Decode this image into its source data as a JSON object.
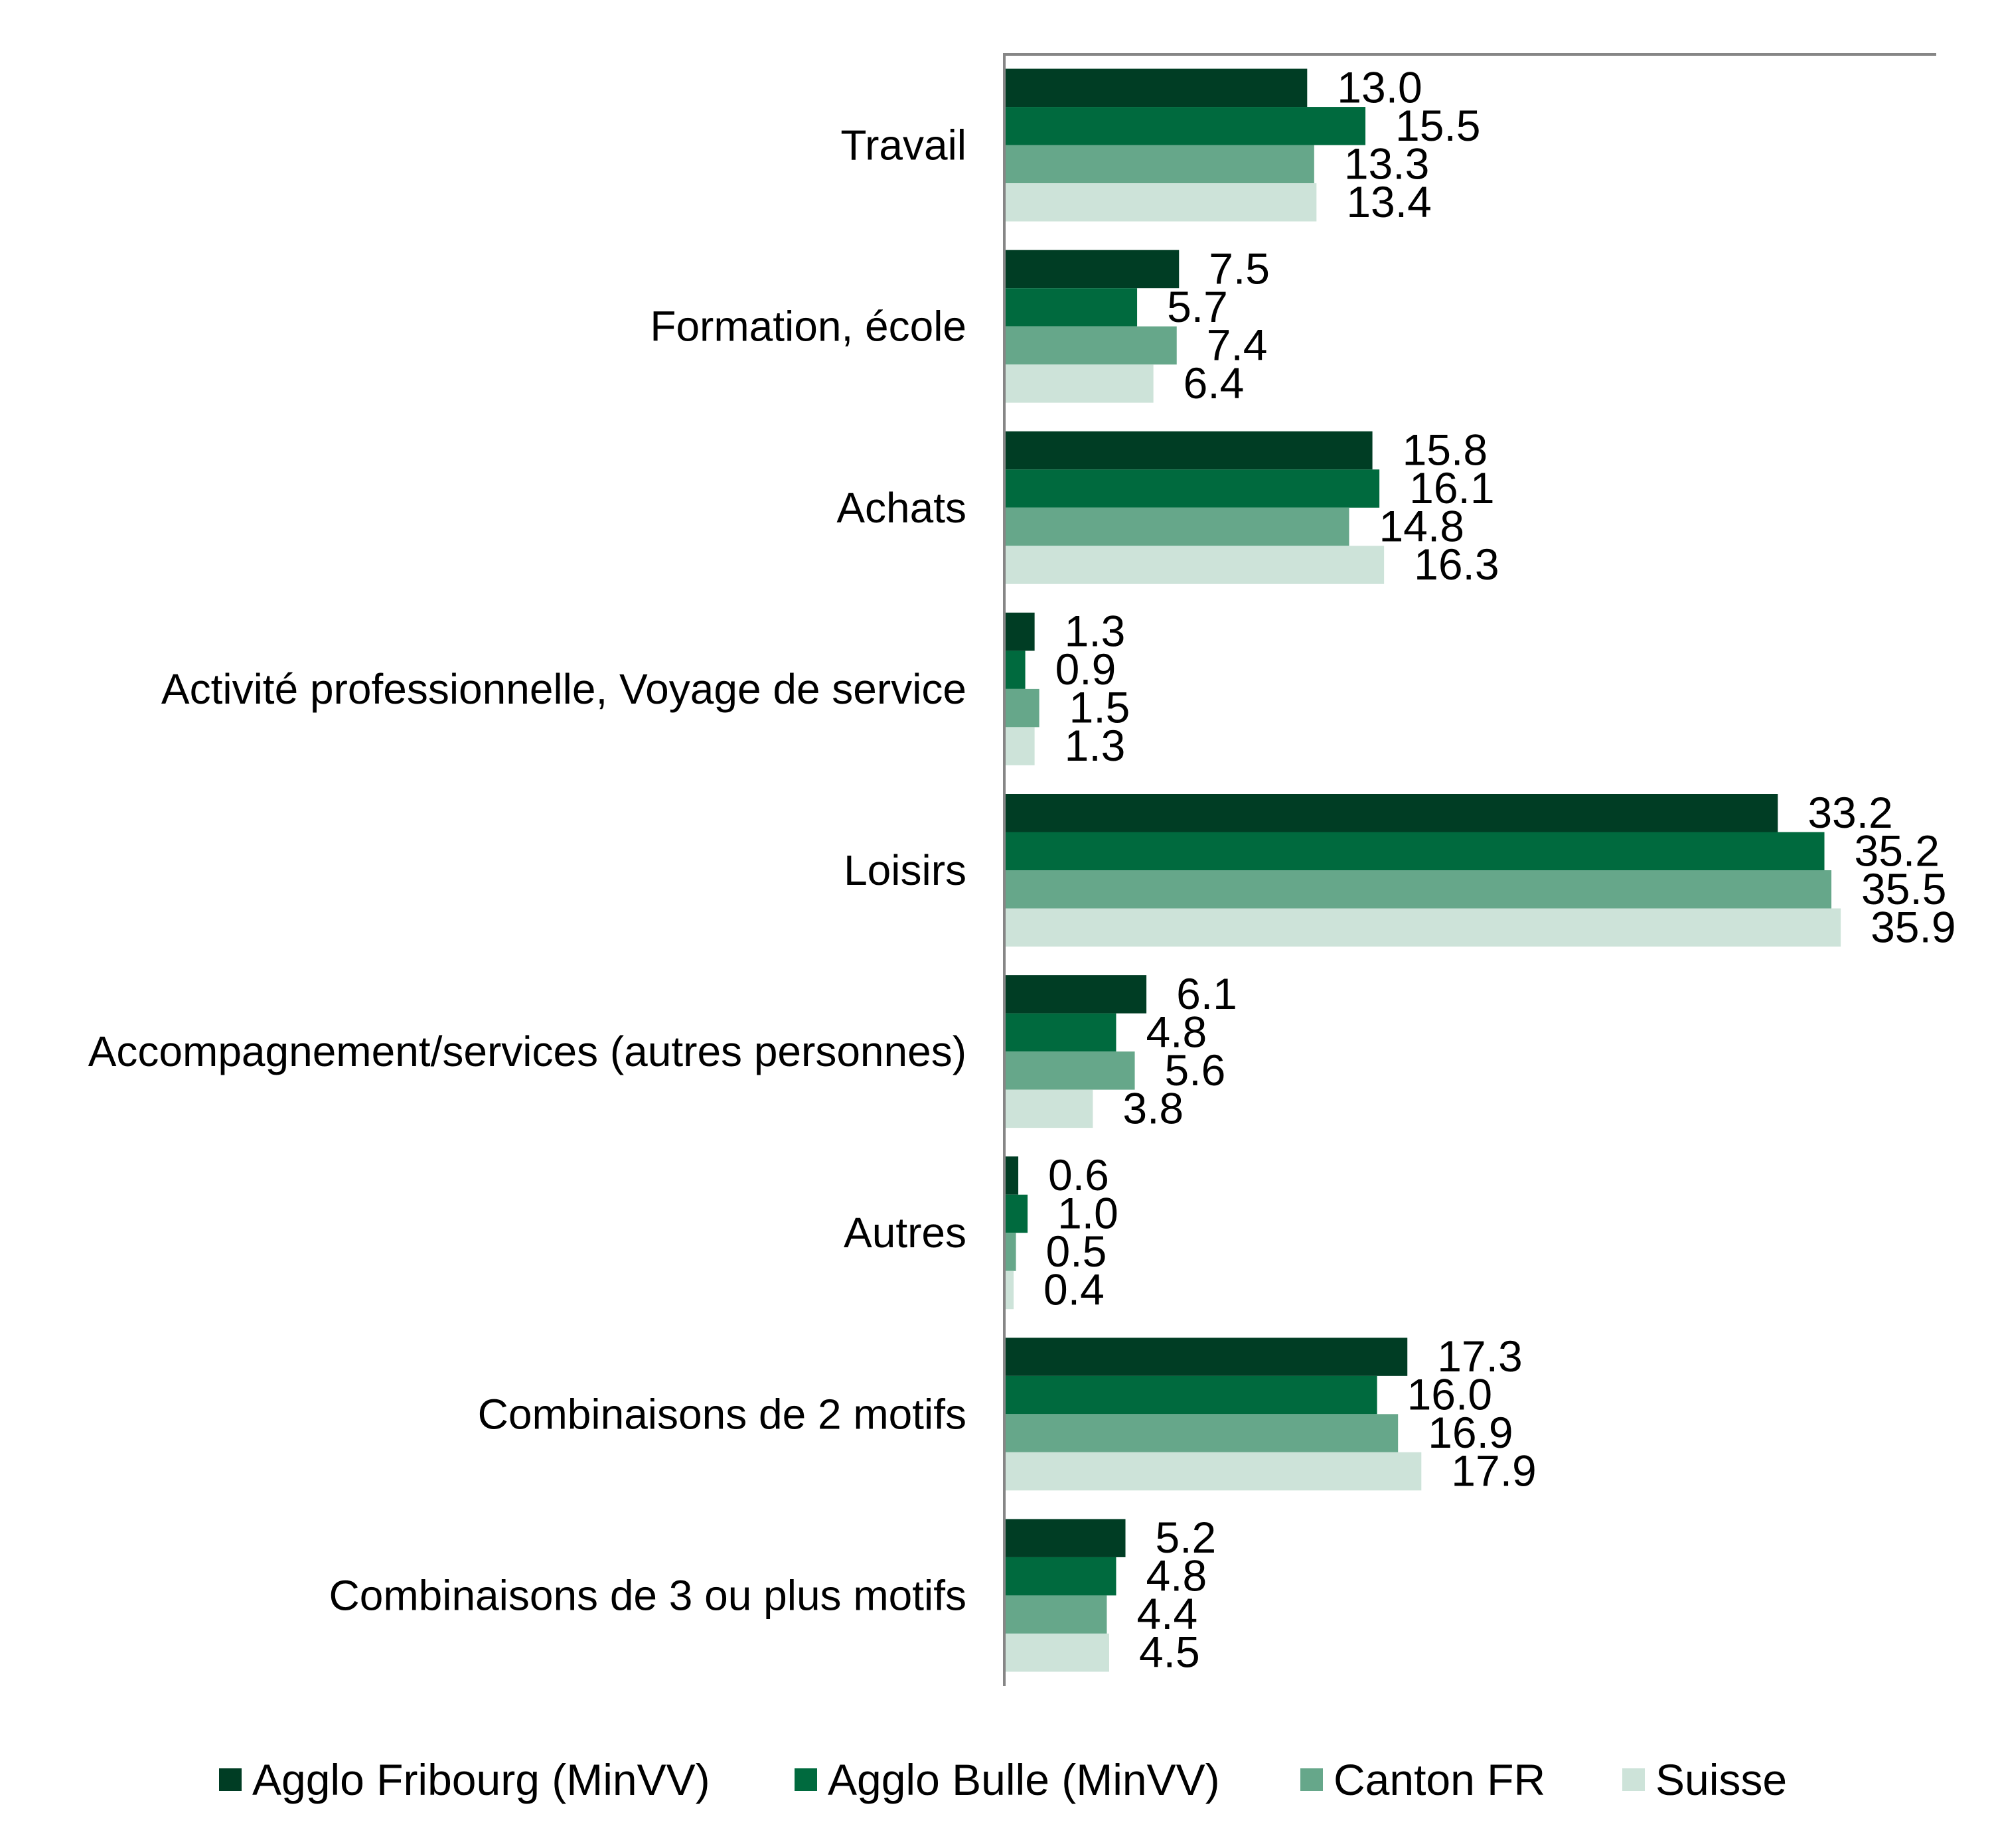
{
  "chart_data": {
    "type": "bar",
    "orientation": "horizontal",
    "title": "",
    "xlabel": "",
    "ylabel": "",
    "xlim": [
      0,
      40
    ],
    "grid": false,
    "legend_position": "bottom",
    "categories": [
      "Travail",
      "Formation, école",
      "Achats",
      "Activité professionnelle, Voyage de service",
      "Loisirs",
      "Accompagnement/services (autres personnes)",
      "Autres",
      "Combinaisons de 2 motifs",
      "Combinaisons de 3 ou plus motifs"
    ],
    "series": [
      {
        "name": "Agglo Fribourg (MinVV)",
        "color": "#003d24",
        "values": [
          13.0,
          7.5,
          15.8,
          1.3,
          33.2,
          6.1,
          0.6,
          17.3,
          5.2
        ],
        "labels": [
          "13.0",
          "7.5",
          "15.8",
          "1.3",
          "33.2",
          "6.1",
          "0.6",
          "17.3",
          "5.2"
        ]
      },
      {
        "name": "Agglo Bulle (MinVV)",
        "color": "#006a3e",
        "values": [
          15.5,
          5.7,
          16.1,
          0.9,
          35.2,
          4.8,
          1.0,
          16.0,
          4.8
        ],
        "labels": [
          "15.5",
          "5.7",
          "16.1",
          "0.9",
          "35.2",
          "4.8",
          "1.0",
          "16.0",
          "4.8"
        ]
      },
      {
        "name": "Canton FR",
        "color": "#66a78a",
        "values": [
          13.3,
          7.4,
          14.8,
          1.5,
          35.5,
          5.6,
          0.5,
          16.9,
          4.4
        ],
        "labels": [
          "13.3",
          "7.4",
          "14.8",
          "1.5",
          "35.5",
          "5.6",
          "0.5",
          "16.9",
          "4.4"
        ]
      },
      {
        "name": "Suisse",
        "color": "#cde3d9",
        "values": [
          13.4,
          6.4,
          16.3,
          1.3,
          35.9,
          3.8,
          0.4,
          17.9,
          4.5
        ],
        "labels": [
          "13.4",
          "6.4",
          "16.3",
          "1.3",
          "35.9",
          "3.8",
          "0.4",
          "17.9",
          "4.5"
        ]
      }
    ],
    "axis_color": "#868686"
  }
}
